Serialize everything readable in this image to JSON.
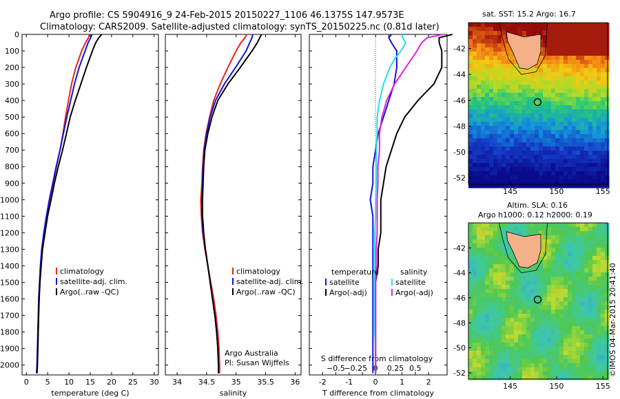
{
  "header": {
    "line1": "Argo profile: CS 5904916_9 24-Feb-2015 20150227_1106 46.1375S 147.9573E",
    "line2": "Climatology: CARS2009. Satellite-adjusted climatology: synTS_20150225.nc (0.81d later)"
  },
  "credit": {
    "line1": "Argo Australia",
    "line2": "PI: Susan Wijffels"
  },
  "timestamp": "©IMOS 04-Mar-2015 20:41:40",
  "colors": {
    "climatology": "#e8231e",
    "satellite": "#1010e0",
    "argo": "#000000",
    "sat_salinity": "#22e0e8",
    "argo_salinity": "#e020e0"
  },
  "depth_axis": {
    "ticks": [
      0,
      100,
      200,
      300,
      400,
      500,
      600,
      700,
      800,
      900,
      1000,
      1100,
      1200,
      1300,
      1400,
      1500,
      1600,
      1700,
      1800,
      1900,
      2000
    ],
    "lim": [
      0,
      2060
    ]
  },
  "chart_data": [
    {
      "type": "line",
      "xlabel": "temperature (deg C)",
      "xlim": [
        -1,
        31
      ],
      "xticks": [
        0,
        5,
        10,
        15,
        20,
        25,
        30
      ],
      "legend": [
        "climatology",
        "satellite-adj. clim.",
        "Argo(..raw -QC)"
      ],
      "depth": [
        0,
        20,
        50,
        100,
        150,
        200,
        300,
        400,
        500,
        600,
        700,
        800,
        900,
        1000,
        1100,
        1200,
        1300,
        1400,
        1500,
        1600,
        1700,
        1800,
        1900,
        2000,
        2050
      ],
      "series": [
        {
          "name": "climatology",
          "values": [
            14.8,
            14.6,
            13.9,
            13.0,
            12.3,
            11.6,
            10.6,
            9.9,
            9.2,
            8.6,
            7.9,
            7.1,
            6.3,
            5.6,
            4.8,
            4.2,
            3.7,
            3.4,
            3.2,
            3.0,
            2.9,
            2.8,
            2.7,
            2.6,
            2.5
          ]
        },
        {
          "name": "satellite-adj. clim.",
          "values": [
            15.4,
            15.1,
            14.5,
            13.8,
            13.1,
            12.4,
            11.3,
            10.4,
            9.5,
            8.7,
            7.9,
            7.0,
            6.2,
            5.4,
            4.7,
            4.1,
            3.6,
            3.3,
            3.1,
            2.9,
            2.8,
            2.7,
            2.6,
            2.5,
            2.4
          ]
        },
        {
          "name": "Argo(..raw -QC)",
          "values": [
            17.7,
            17.0,
            16.3,
            15.5,
            14.8,
            14.1,
            12.8,
            11.5,
            10.3,
            9.4,
            8.5,
            7.5,
            6.6,
            5.8,
            5.0,
            4.4,
            3.8,
            3.5,
            3.2,
            3.0,
            2.9,
            2.8,
            2.7,
            2.6,
            2.5
          ]
        }
      ]
    },
    {
      "type": "line",
      "xlabel": "salinity",
      "xlim": [
        33.8,
        36.1
      ],
      "xticks": [
        34,
        34.5,
        35,
        35.5,
        36
      ],
      "xticklabels": [
        "34",
        "34.5",
        "35",
        "35.5",
        "36"
      ],
      "legend": [
        "climatology",
        "satellite-adj. clim.",
        "Argo(..raw -QC)"
      ],
      "depth": [
        0,
        20,
        50,
        100,
        150,
        200,
        300,
        400,
        500,
        600,
        700,
        800,
        900,
        1000,
        1100,
        1200,
        1300,
        1400,
        1500,
        1600,
        1700,
        1800,
        1900,
        2000,
        2050
      ],
      "series": [
        {
          "name": "climatology",
          "values": [
            35.18,
            35.15,
            35.08,
            35.0,
            34.93,
            34.86,
            34.73,
            34.62,
            34.55,
            34.49,
            34.45,
            34.43,
            34.42,
            34.4,
            34.41,
            34.43,
            34.47,
            34.52,
            34.57,
            34.62,
            34.66,
            34.69,
            34.71,
            34.72,
            34.72
          ]
        },
        {
          "name": "satellite-adj. clim.",
          "values": [
            35.28,
            35.27,
            35.23,
            35.17,
            35.08,
            34.99,
            34.8,
            34.65,
            34.56,
            34.5,
            34.46,
            34.44,
            34.43,
            34.42,
            34.42,
            34.44,
            34.48,
            34.52,
            34.56,
            34.6,
            34.64,
            34.67,
            34.69,
            34.7,
            34.7
          ]
        },
        {
          "name": "Argo(..raw -QC)",
          "values": [
            35.43,
            35.4,
            35.36,
            35.27,
            35.17,
            35.07,
            34.86,
            34.69,
            34.59,
            34.52,
            34.47,
            34.45,
            34.44,
            34.43,
            34.43,
            34.45,
            34.48,
            34.52,
            34.56,
            34.6,
            34.64,
            34.67,
            34.69,
            34.7,
            34.7
          ]
        }
      ]
    },
    {
      "type": "line",
      "xlabel": "T difference from climatology",
      "xlabel_top": "S difference from climatology",
      "xlim": [
        -2.5,
        2.7
      ],
      "xticks": [
        -2,
        -1.5,
        -1,
        -0.5,
        0,
        0.5,
        1,
        1.5,
        2
      ],
      "xticklabels": [
        "-2",
        "",
        "-1",
        "",
        "0",
        "",
        "1",
        "",
        "2"
      ],
      "top_ticks": [
        -0.5,
        -0.25,
        0,
        0.25,
        0.5
      ],
      "top_ticklabels": [
        "−0.5",
        "−0.25",
        "0",
        "0.25",
        "0.5"
      ],
      "top_scale": 3,
      "legend_groups": [
        {
          "title": "temperature",
          "items": [
            "satellite",
            "Argo(-adj)"
          ]
        },
        {
          "title": "salinity",
          "items": [
            "satellite",
            "Argo(-adj)"
          ]
        }
      ],
      "depth": [
        0,
        20,
        50,
        100,
        150,
        200,
        300,
        400,
        500,
        600,
        700,
        800,
        900,
        1000,
        1100,
        1200,
        1300,
        1400,
        1500,
        1600,
        1700,
        1800,
        1900,
        2000,
        2050
      ],
      "series": [
        {
          "name": "temperature satellite",
          "values": [
            0.6,
            0.5,
            0.6,
            0.8,
            0.8,
            0.8,
            0.7,
            0.5,
            0.3,
            0.1,
            0.0,
            -0.1,
            -0.1,
            -0.2,
            -0.1,
            -0.1,
            -0.1,
            -0.1,
            -0.1,
            -0.1,
            -0.1,
            -0.1,
            -0.1,
            -0.1,
            -0.1
          ]
        },
        {
          "name": "temperature Argo(-adj)",
          "values": [
            2.9,
            2.4,
            2.4,
            2.5,
            2.5,
            2.5,
            2.2,
            1.6,
            1.1,
            0.8,
            0.6,
            0.4,
            0.3,
            0.2,
            0.2,
            0.2,
            0.1,
            0.1,
            0.0,
            0.0,
            0.0,
            0.0,
            0.0,
            0.0,
            0.0
          ]
        },
        {
          "name": "salinity satellite",
          "values": [
            0.33,
            0.34,
            0.38,
            0.32,
            0.24,
            0.18,
            0.1,
            0.05,
            0.02,
            0.02,
            0.01,
            0.01,
            0.01,
            0.0,
            0.0,
            -0.01,
            -0.01,
            -0.01,
            -0.01,
            -0.01,
            -0.01,
            -0.01,
            0.0,
            0.0,
            0.0
          ]
        },
        {
          "name": "salinity Argo(-adj)",
          "values": [
            0.85,
            0.65,
            0.58,
            0.52,
            0.45,
            0.38,
            0.24,
            0.14,
            0.08,
            0.05,
            0.05,
            0.03,
            0.03,
            0.02,
            0.02,
            0.02,
            0.01,
            0.01,
            0.0,
            0.0,
            0.0,
            0.0,
            0.0,
            0.0,
            0.0
          ]
        }
      ]
    }
  ],
  "maps": [
    {
      "title": "sat. SST: 15.2  Argo: 16.7",
      "xticks": [
        145,
        150,
        155
      ],
      "yticks": [
        -42,
        -44,
        -46,
        -48,
        -50,
        -52
      ],
      "xlim": [
        140.5,
        155.5
      ],
      "ylim": [
        -52.5,
        -40
      ],
      "argo_position": [
        147.96,
        -46.14
      ]
    },
    {
      "title_line1": "Altim. SLA: 0.16",
      "title_line2": "Argo h1000: 0.12 h2000: 0.19",
      "xticks": [
        145,
        150,
        155
      ],
      "yticks": [
        -42,
        -44,
        -46,
        -48,
        -50,
        -52
      ],
      "xlim": [
        140.5,
        155.5
      ],
      "ylim": [
        -52.5,
        -40
      ],
      "argo_position": [
        147.96,
        -46.14
      ]
    }
  ]
}
